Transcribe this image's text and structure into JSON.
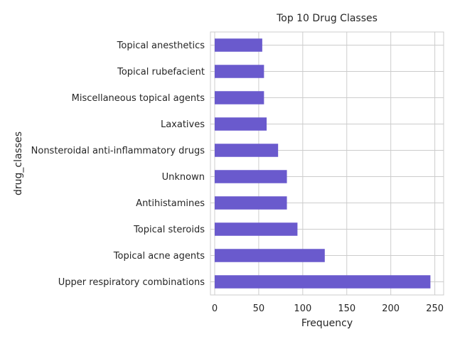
{
  "chart_data": {
    "type": "bar",
    "orientation": "horizontal",
    "title": "Top 10 Drug Classes",
    "xlabel": "Frequency",
    "ylabel": "drug_classes",
    "xlim": [
      0,
      260
    ],
    "xticks": [
      0,
      50,
      100,
      150,
      200,
      250
    ],
    "grid": true,
    "legend": "none",
    "bar_color": "#6A5ACD",
    "categories": [
      "Upper respiratory combinations",
      "Topical acne agents",
      "Topical steroids",
      "Antihistamines",
      "Unknown",
      "Nonsteroidal anti-inflammatory drugs",
      "Laxatives",
      "Miscellaneous topical agents",
      "Topical rubefacient",
      "Topical anesthetics"
    ],
    "values": [
      245,
      125,
      94,
      82,
      82,
      72,
      59,
      56,
      56,
      54
    ]
  }
}
